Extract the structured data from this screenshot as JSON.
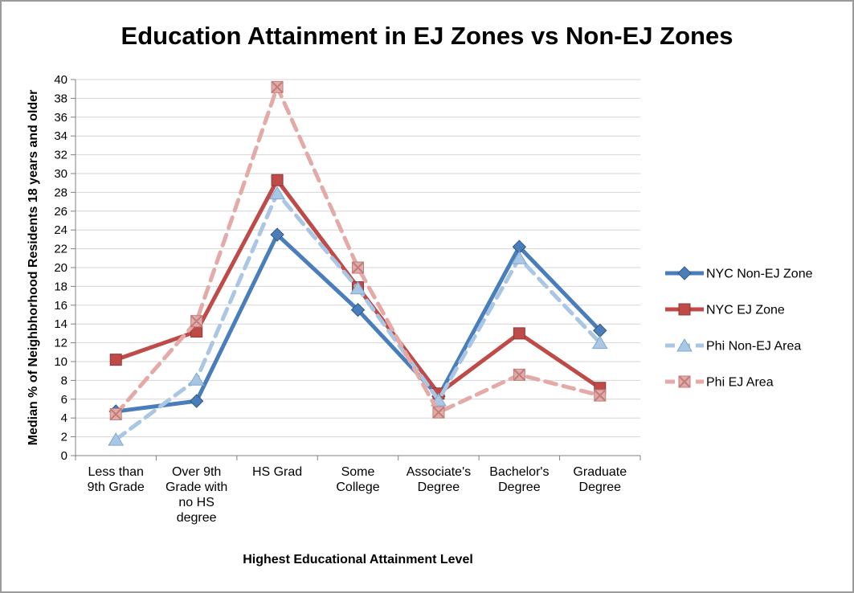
{
  "chart_data": {
    "type": "line",
    "title": "Education Attainment in EJ Zones vs Non-EJ Zones",
    "xlabel": "Highest Educational Attainment Level",
    "ylabel": "Median % of Neighbhorhood Residents 18 years and older",
    "ylim": [
      0,
      40
    ],
    "ytick_step": 2,
    "grid": true,
    "legend_position": "right",
    "colors": {
      "grid": "#d6d6d6",
      "axis": "#808080",
      "frame_border": "#9b9b9b"
    },
    "categories": [
      "Less than 9th Grade",
      "Over 9th Grade with no HS degree",
      "HS Grad",
      "Some College",
      "Associate's Degree",
      "Bachelor's Degree",
      "Graduate Degree"
    ],
    "category_label_lines": [
      [
        "Less than",
        "9th Grade"
      ],
      [
        "Over 9th",
        "Grade with",
        "no HS",
        "degree"
      ],
      [
        "HS Grad"
      ],
      [
        "Some",
        "College"
      ],
      [
        "Associate's",
        "Degree"
      ],
      [
        "Bachelor's",
        "Degree"
      ],
      [
        "Graduate",
        "Degree"
      ]
    ],
    "series": [
      {
        "name": "NYC Non-EJ Zone",
        "color": "#4a7ebb",
        "edge": "#35587f",
        "marker": "diamond",
        "dash": "solid",
        "values": [
          4.7,
          5.8,
          23.5,
          15.5,
          6.3,
          22.2,
          13.3
        ]
      },
      {
        "name": "NYC EJ Zone",
        "color": "#bf4b48",
        "edge": "#8e3835",
        "marker": "square",
        "dash": "solid",
        "values": [
          10.2,
          13.2,
          29.3,
          17.9,
          6.6,
          13.0,
          7.2
        ]
      },
      {
        "name": "Phi Non-EJ Area",
        "color": "#a9c6e3",
        "edge": "#7da7d4",
        "marker": "triangle",
        "dash": "dashed",
        "values": [
          1.7,
          8.1,
          27.9,
          17.8,
          5.9,
          21.0,
          12.0
        ]
      },
      {
        "name": "Phi EJ Area",
        "color": "#e3aaa8",
        "edge": "#c07e7b",
        "marker": "xbox",
        "dash": "dashed",
        "values": [
          4.4,
          14.3,
          39.2,
          20.0,
          4.6,
          8.6,
          6.4
        ]
      }
    ]
  }
}
